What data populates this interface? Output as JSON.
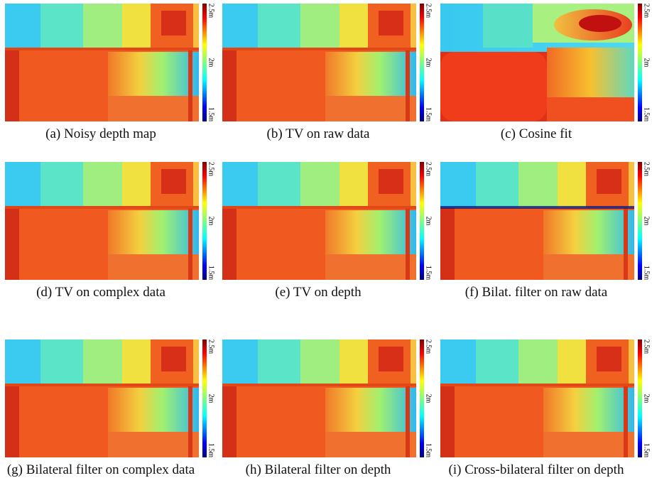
{
  "panels": [
    {
      "caption": "(a) Noisy depth map",
      "colorbar_labels": [
        "2.5m",
        "2m",
        "1.5m"
      ]
    },
    {
      "caption": "(b) TV on raw data",
      "colorbar_labels": [
        "2.5m",
        "2m",
        "1.5m"
      ]
    },
    {
      "caption": "(c) Cosine fit",
      "colorbar_labels": [
        "2.5m",
        "2m",
        "1.5m"
      ]
    },
    {
      "caption": "(d) TV on complex data",
      "colorbar_labels": [
        "2.5m",
        "2m",
        "1.5m"
      ]
    },
    {
      "caption": "(e) TV on depth",
      "colorbar_labels": [
        "2.5m",
        "2m",
        "1.5m"
      ]
    },
    {
      "caption": "(f) Bilat. filter on raw data",
      "colorbar_labels": [
        "2.5m",
        "2m",
        "1.5m"
      ]
    },
    {
      "caption": "(g) Bilateral filter on complex data",
      "colorbar_labels": [
        "2.5m",
        "2m",
        "1.5m"
      ]
    },
    {
      "caption": "(h) Bilateral filter on depth",
      "colorbar_labels": [
        "2.5m",
        "2m",
        "1.5m"
      ]
    },
    {
      "caption": "(i) Cross-bilateral filter on depth",
      "colorbar_labels": [
        "2.5m",
        "2m",
        "1.5m"
      ]
    }
  ]
}
